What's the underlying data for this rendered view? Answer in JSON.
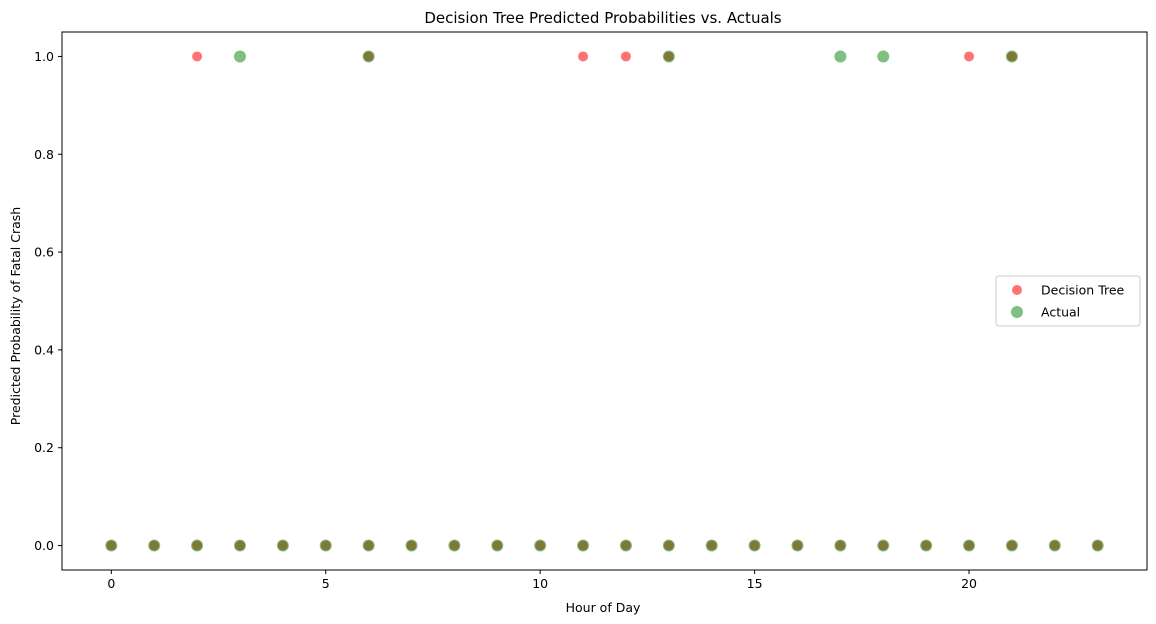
{
  "chart_data": {
    "type": "scatter",
    "title": "Decision Tree Predicted Probabilities vs. Actuals",
    "xlabel": "Hour of Day",
    "ylabel": "Predicted Probability of Fatal Crash",
    "xlim": [
      -1.15,
      24.15
    ],
    "ylim": [
      -0.05,
      1.05
    ],
    "xticks": [
      0,
      5,
      10,
      15,
      20
    ],
    "xtick_labels": [
      "0",
      "5",
      "10",
      "15",
      "20"
    ],
    "yticks": [
      0.0,
      0.2,
      0.4,
      0.6,
      0.8,
      1.0
    ],
    "ytick_labels": [
      "0.0",
      "0.2",
      "0.4",
      "0.6",
      "0.8",
      "1.0"
    ],
    "grid": false,
    "legend_position": "center-right",
    "series": [
      {
        "name": "Decision Tree",
        "color": "#ff0000",
        "alpha": 0.55,
        "points": [
          [
            0,
            0
          ],
          [
            1,
            0
          ],
          [
            2,
            0
          ],
          [
            3,
            0
          ],
          [
            4,
            0
          ],
          [
            5,
            0
          ],
          [
            6,
            0
          ],
          [
            7,
            0
          ],
          [
            8,
            0
          ],
          [
            9,
            0
          ],
          [
            10,
            0
          ],
          [
            11,
            0
          ],
          [
            12,
            0
          ],
          [
            13,
            0
          ],
          [
            14,
            0
          ],
          [
            15,
            0
          ],
          [
            16,
            0
          ],
          [
            17,
            0
          ],
          [
            18,
            0
          ],
          [
            19,
            0
          ],
          [
            20,
            0
          ],
          [
            21,
            0
          ],
          [
            22,
            0
          ],
          [
            23,
            0
          ],
          [
            2,
            1
          ],
          [
            6,
            1
          ],
          [
            11,
            1
          ],
          [
            12,
            1
          ],
          [
            13,
            1
          ],
          [
            20,
            1
          ],
          [
            21,
            1
          ]
        ]
      },
      {
        "name": "Actual",
        "color": "#008000",
        "alpha": 0.5,
        "points": [
          [
            0,
            0
          ],
          [
            1,
            0
          ],
          [
            2,
            0
          ],
          [
            3,
            0
          ],
          [
            4,
            0
          ],
          [
            5,
            0
          ],
          [
            6,
            0
          ],
          [
            7,
            0
          ],
          [
            8,
            0
          ],
          [
            9,
            0
          ],
          [
            10,
            0
          ],
          [
            11,
            0
          ],
          [
            12,
            0
          ],
          [
            13,
            0
          ],
          [
            14,
            0
          ],
          [
            15,
            0
          ],
          [
            16,
            0
          ],
          [
            17,
            0
          ],
          [
            18,
            0
          ],
          [
            19,
            0
          ],
          [
            20,
            0
          ],
          [
            21,
            0
          ],
          [
            22,
            0
          ],
          [
            23,
            0
          ],
          [
            3,
            1
          ],
          [
            6,
            1
          ],
          [
            13,
            1
          ],
          [
            17,
            1
          ],
          [
            18,
            1
          ],
          [
            21,
            1
          ]
        ]
      }
    ]
  }
}
